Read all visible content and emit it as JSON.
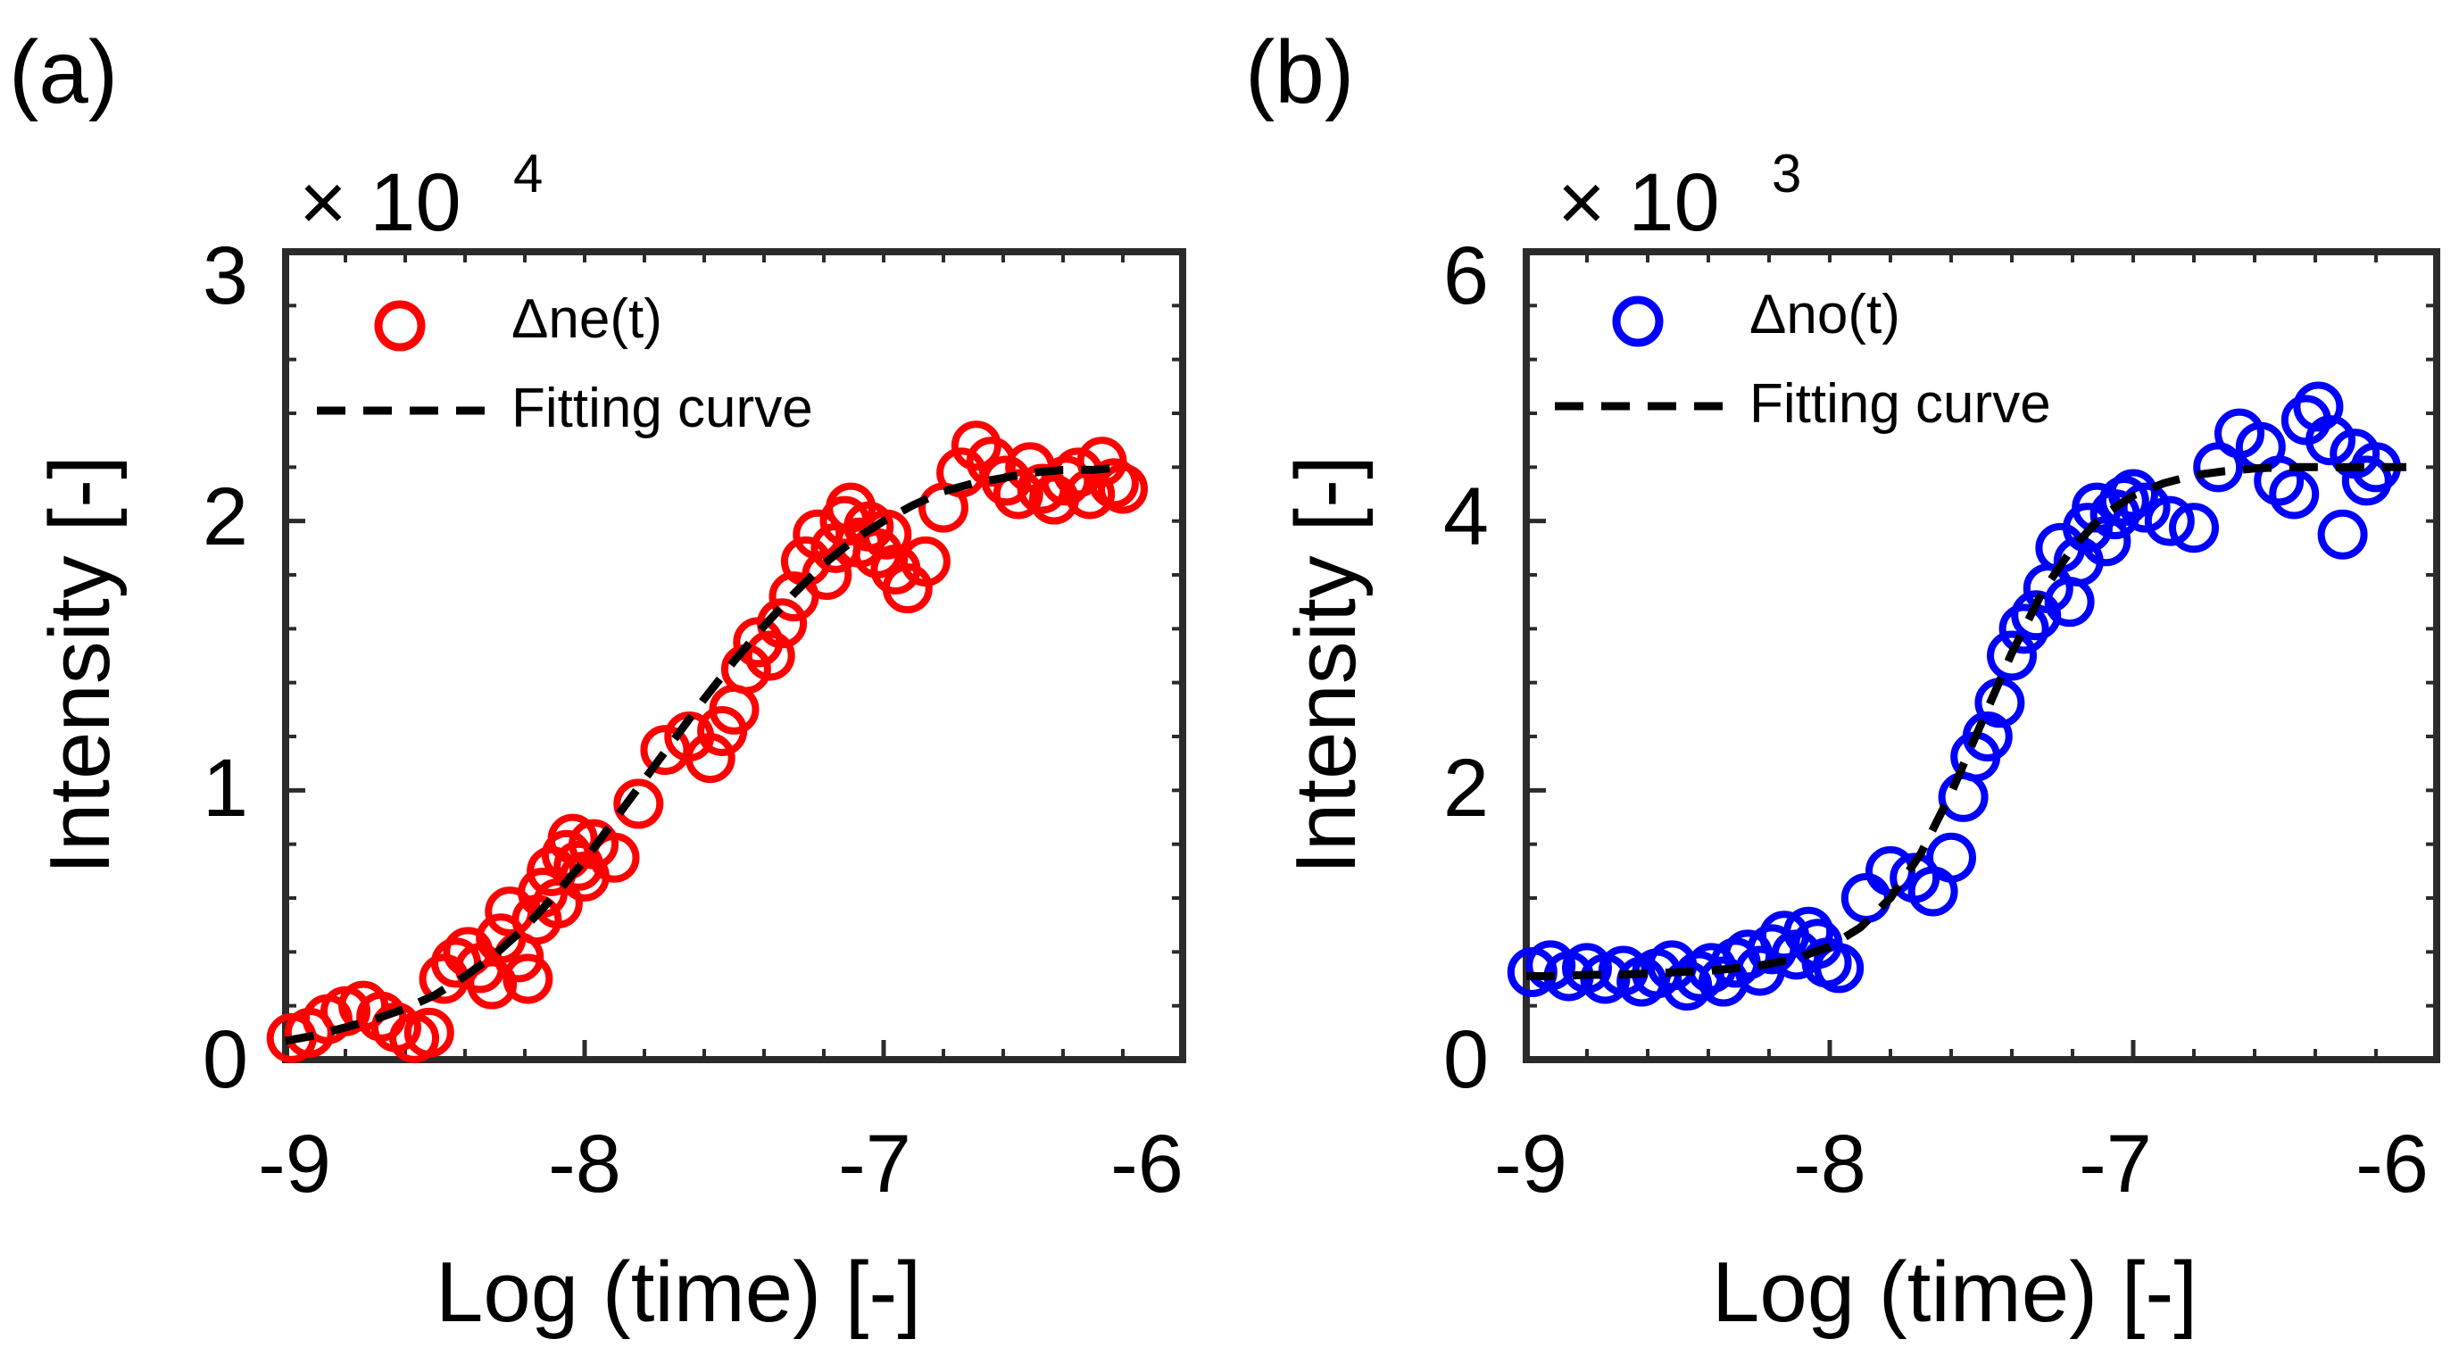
{
  "chart_data": [
    {
      "type": "scatter",
      "panel_label": "(a)",
      "xlabel": "Log (time) [-]",
      "ylabel": "Intensity [-]",
      "multiplier": {
        "base": "× 10",
        "exponent": "4"
      },
      "xlim": [
        -9,
        -6
      ],
      "ylim": [
        0,
        3
      ],
      "x_ticks": [
        -9,
        -8,
        -7,
        -6
      ],
      "x_tick_labels": [
        "-9",
        "-8",
        "-7",
        "-6"
      ],
      "y_ticks": [
        0,
        1,
        2,
        3
      ],
      "y_tick_labels": [
        "0",
        "1",
        "2",
        "3"
      ],
      "marker_color": "#ff0000",
      "legend": {
        "position": "top-left",
        "entries": [
          "Δne(t)",
          "Fitting curve"
        ]
      },
      "series": [
        {
          "name": "Δne(t)",
          "style": "open-circle",
          "x": [
            -8.98,
            -8.92,
            -8.86,
            -8.8,
            -8.74,
            -8.68,
            -8.63,
            -8.57,
            -8.52,
            -8.47,
            -8.43,
            -8.39,
            -8.35,
            -8.31,
            -8.28,
            -8.25,
            -8.22,
            -8.19,
            -8.16,
            -8.14,
            -8.11,
            -8.09,
            -8.06,
            -8.04,
            -8.02,
            -8.0,
            -7.97,
            -7.9,
            -7.82,
            -7.73,
            -7.65,
            -7.58,
            -7.54,
            -7.5,
            -7.46,
            -7.42,
            -7.38,
            -7.34,
            -7.3,
            -7.26,
            -7.22,
            -7.19,
            -7.16,
            -7.13,
            -7.11,
            -7.08,
            -7.05,
            -7.02,
            -6.99,
            -6.96,
            -6.92,
            -6.86,
            -6.8,
            -6.74,
            -6.69,
            -6.64,
            -6.59,
            -6.55,
            -6.51,
            -6.47,
            -6.43,
            -6.39,
            -6.35,
            -6.31,
            -6.27,
            -6.23,
            -6.2
          ],
          "y": [
            0.08,
            0.1,
            0.15,
            0.18,
            0.2,
            0.16,
            0.12,
            0.08,
            0.1,
            0.3,
            0.36,
            0.4,
            0.34,
            0.28,
            0.45,
            0.55,
            0.38,
            0.3,
            0.52,
            0.62,
            0.7,
            0.58,
            0.76,
            0.82,
            0.72,
            0.68,
            0.8,
            0.75,
            0.95,
            1.15,
            1.2,
            1.12,
            1.22,
            1.3,
            1.45,
            1.55,
            1.5,
            1.62,
            1.72,
            1.85,
            1.95,
            1.8,
            1.9,
            2.0,
            2.05,
            1.92,
            1.98,
            1.88,
            1.95,
            1.82,
            1.75,
            1.85,
            2.05,
            2.18,
            2.28,
            2.22,
            2.15,
            2.1,
            2.2,
            2.12,
            2.08,
            2.15,
            2.18,
            2.1,
            2.22,
            2.14,
            2.12
          ]
        },
        {
          "name": "Fitting curve",
          "style": "dashed-line",
          "x": [
            -9.0,
            -8.9,
            -8.8,
            -8.7,
            -8.6,
            -8.5,
            -8.4,
            -8.3,
            -8.2,
            -8.1,
            -8.0,
            -7.9,
            -7.8,
            -7.7,
            -7.6,
            -7.5,
            -7.4,
            -7.3,
            -7.2,
            -7.1,
            -7.0,
            -6.9,
            -6.8,
            -6.7,
            -6.6,
            -6.5,
            -6.4,
            -6.3,
            -6.2
          ],
          "y": [
            0.07,
            0.09,
            0.12,
            0.15,
            0.19,
            0.24,
            0.31,
            0.39,
            0.49,
            0.61,
            0.74,
            0.89,
            1.04,
            1.19,
            1.34,
            1.48,
            1.61,
            1.73,
            1.84,
            1.93,
            2.0,
            2.06,
            2.11,
            2.14,
            2.16,
            2.18,
            2.19,
            2.19,
            2.2
          ]
        }
      ]
    },
    {
      "type": "scatter",
      "panel_label": "(b)",
      "xlabel": "Log (time) [-]",
      "ylabel": "Intensity [-]",
      "multiplier": {
        "base": "× 10",
        "exponent": "3"
      },
      "xlim": [
        -9,
        -6
      ],
      "ylim": [
        0,
        6
      ],
      "x_ticks": [
        -9,
        -8,
        -7,
        -6
      ],
      "x_tick_labels": [
        "-9",
        "-8",
        "-7",
        "-6"
      ],
      "y_ticks": [
        0,
        2,
        4,
        6
      ],
      "y_tick_labels": [
        "0",
        "2",
        "4",
        "6"
      ],
      "marker_color": "#0000ff",
      "legend": {
        "position": "top-left",
        "entries": [
          "Δno(t)",
          "Fitting curve"
        ]
      },
      "series": [
        {
          "name": "Δno(t)",
          "style": "open-circle",
          "x": [
            -8.98,
            -8.92,
            -8.86,
            -8.8,
            -8.74,
            -8.68,
            -8.62,
            -8.57,
            -8.52,
            -8.47,
            -8.43,
            -8.39,
            -8.35,
            -8.31,
            -8.27,
            -8.23,
            -8.19,
            -8.15,
            -8.11,
            -8.07,
            -8.04,
            -8.01,
            -7.97,
            -7.88,
            -7.8,
            -7.72,
            -7.66,
            -7.6,
            -7.56,
            -7.52,
            -7.48,
            -7.44,
            -7.4,
            -7.36,
            -7.32,
            -7.28,
            -7.24,
            -7.21,
            -7.18,
            -7.15,
            -7.12,
            -7.09,
            -7.06,
            -7.03,
            -7.0,
            -6.96,
            -6.88,
            -6.8,
            -6.72,
            -6.65,
            -6.58,
            -6.52,
            -6.47,
            -6.43,
            -6.39,
            -6.35,
            -6.31,
            -6.27,
            -6.23,
            -6.2
          ],
          "y": [
            0.65,
            0.7,
            0.62,
            0.68,
            0.6,
            0.66,
            0.58,
            0.64,
            0.7,
            0.55,
            0.62,
            0.68,
            0.58,
            0.72,
            0.78,
            0.66,
            0.82,
            0.92,
            0.78,
            0.95,
            0.86,
            0.72,
            0.68,
            1.2,
            1.4,
            1.35,
            1.25,
            1.5,
            1.95,
            2.25,
            2.4,
            2.65,
            3.0,
            3.2,
            3.3,
            3.5,
            3.8,
            3.4,
            3.7,
            3.95,
            4.1,
            3.85,
            4.05,
            4.15,
            4.2,
            4.1,
            4.0,
            3.95,
            4.4,
            4.65,
            4.55,
            4.3,
            4.2,
            4.75,
            4.85,
            4.6,
            3.9,
            4.5,
            4.3,
            4.4
          ]
        },
        {
          "name": "Fitting curve",
          "style": "dashed-line",
          "x": [
            -9.0,
            -8.9,
            -8.8,
            -8.7,
            -8.6,
            -8.5,
            -8.4,
            -8.3,
            -8.2,
            -8.1,
            -8.0,
            -7.9,
            -7.8,
            -7.7,
            -7.6,
            -7.5,
            -7.4,
            -7.3,
            -7.2,
            -7.1,
            -7.0,
            -6.9,
            -6.8,
            -6.7,
            -6.6,
            -6.5,
            -6.4,
            -6.3,
            -6.2,
            -6.1
          ],
          "y": [
            0.62,
            0.62,
            0.63,
            0.63,
            0.64,
            0.65,
            0.66,
            0.68,
            0.71,
            0.76,
            0.84,
            0.98,
            1.2,
            1.53,
            1.98,
            2.5,
            3.02,
            3.47,
            3.8,
            4.04,
            4.19,
            4.28,
            4.34,
            4.37,
            4.39,
            4.4,
            4.4,
            4.4,
            4.4,
            4.4
          ]
        }
      ]
    }
  ]
}
